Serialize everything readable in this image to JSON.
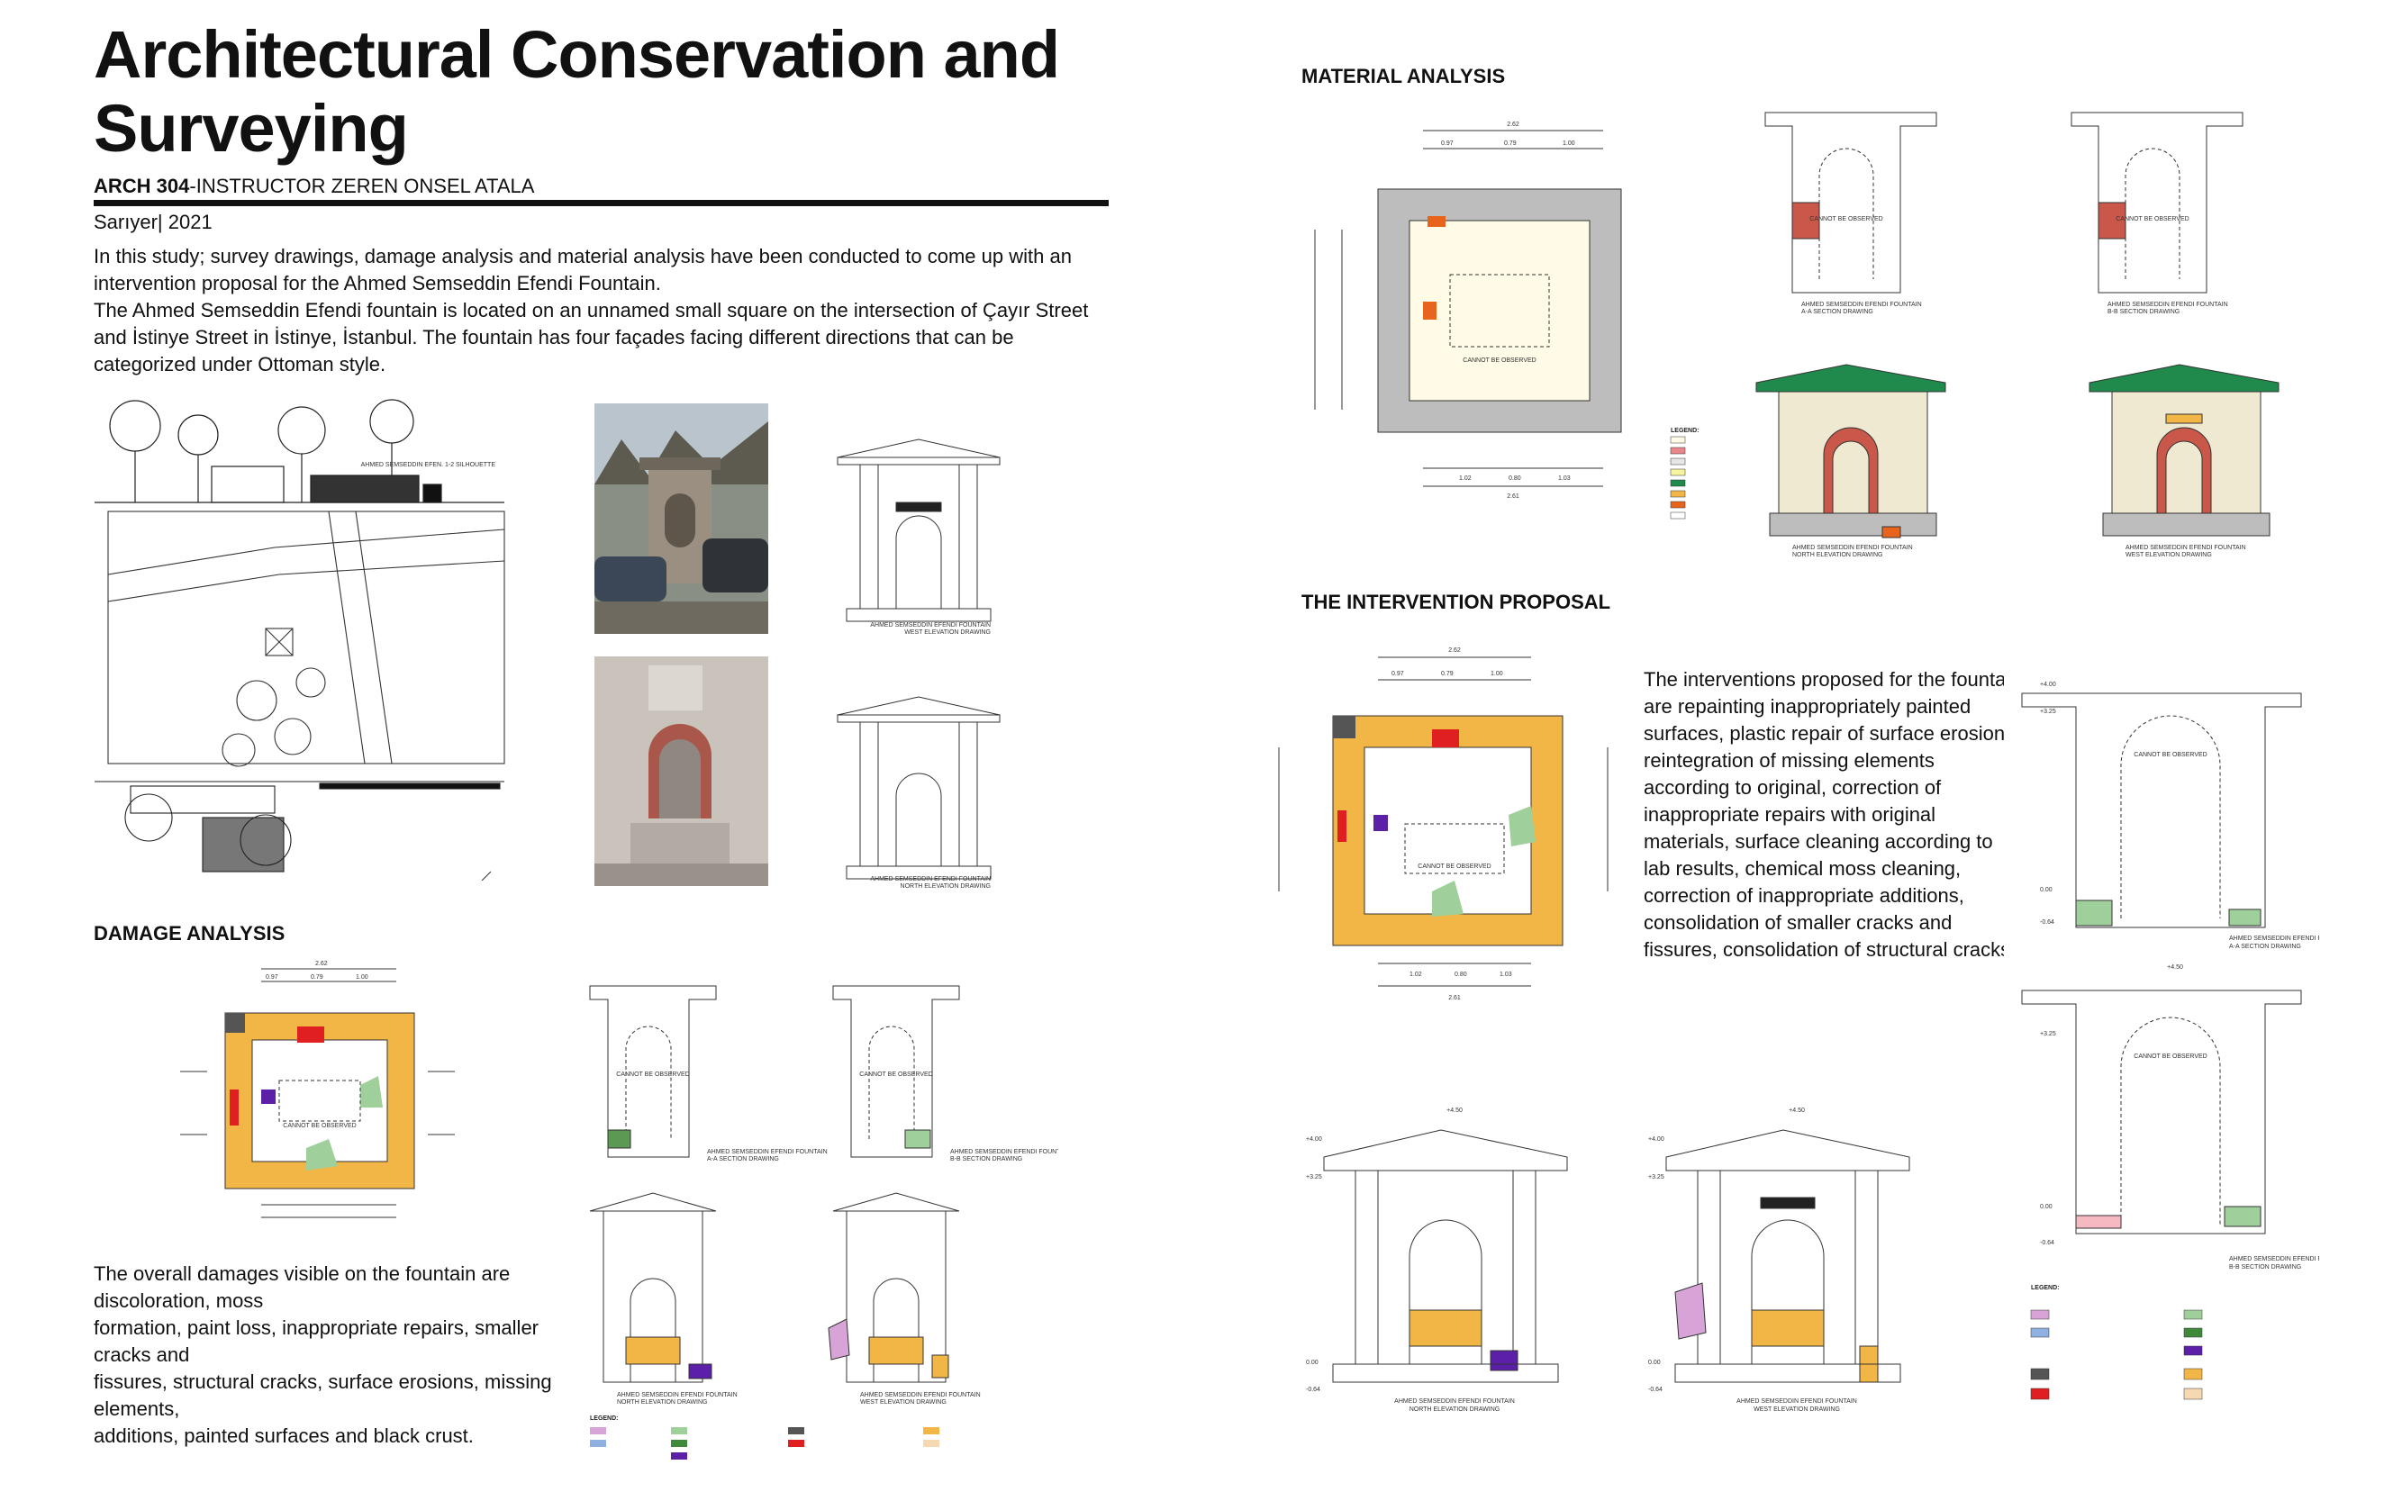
{
  "header": {
    "title": "Architectural Conservation and Surveying",
    "course_code": "ARCH 304",
    "course_rest": "-INSTRUCTOR ZEREN ONSEL ATALA",
    "place_year": "Sarıyer| 2021"
  },
  "intro": [
    "In this study; survey drawings, damage analysis and material analysis have been conducted to come up with an intervention proposal for the Ahmed Semseddin Efendi Fountain.",
    "The Ahmed Semseddin Efendi fountain is located on an unnamed small square on the intersection of Çayır Street and İstinye Street in İstinye, İstanbul. The fountain has four façades facing different directions that can be categorized under Ottoman style."
  ],
  "sections": {
    "damage": "DAMAGE ANALYSIS",
    "material": "MATERIAL ANALYSIS",
    "intervention": "THE INTERVENTION PROPOSAL"
  },
  "damage_text": [
    "The overall damages visible on the fountain are discoloration, moss",
    "formation, paint loss, inappropriate repairs, smaller cracks and",
    "fissures, structural cracks, surface erosions, missing elements,",
    "additions, painted surfaces and black crust."
  ],
  "intervention_text": "The interventions proposed for the fountain are repainting inappropriately painted surfaces, plastic repair of surface erosions, reintegration of missing elements according to original, correction of inappropriate repairs with original materials, surface cleaning according to lab results, chemical moss cleaning, correction of inappropriate additions, consolidation of smaller cracks and fissures, consolidation of structural cracks.",
  "drawings": {
    "cannot_observed": "CANNOT BE OBSERVED",
    "west_elev": "AHMED SEMSEDDIN EFENDI FOUNTAIN",
    "west_elev_sub": "WEST ELEVATION DRAWING",
    "north_elev_sub": "NORTH ELEVATION DRAWING",
    "aa_sub": "A-A SECTION DRAWING",
    "bb_sub": "B-B SECTION DRAWING",
    "silhouette": "AHMED SEMSEDDIN EFEN. 1-2 SILHOUETTE",
    "legend": "LEGEND:",
    "dim_top": "2.62",
    "dim_a": "0.97",
    "dim_b": "0.79",
    "dim_c": "1.00",
    "dim_bottom": "2.61",
    "dim_d": "1.02",
    "dim_e": "0.80",
    "dim_f": "1.03",
    "level_top": "+4.50",
    "level_4": "+4.00",
    "level_3": "+3.25",
    "level_0": "0.00",
    "level_neg": "-0.64"
  },
  "colors": {
    "orange_fill": "#f2b646",
    "grey_fill": "#bdbdbd",
    "green_roof": "#1f8a4c",
    "moss_green": "#9fcf9a",
    "brick": "#c9574a",
    "purple": "#5b1fa8",
    "red": "#e02020"
  }
}
